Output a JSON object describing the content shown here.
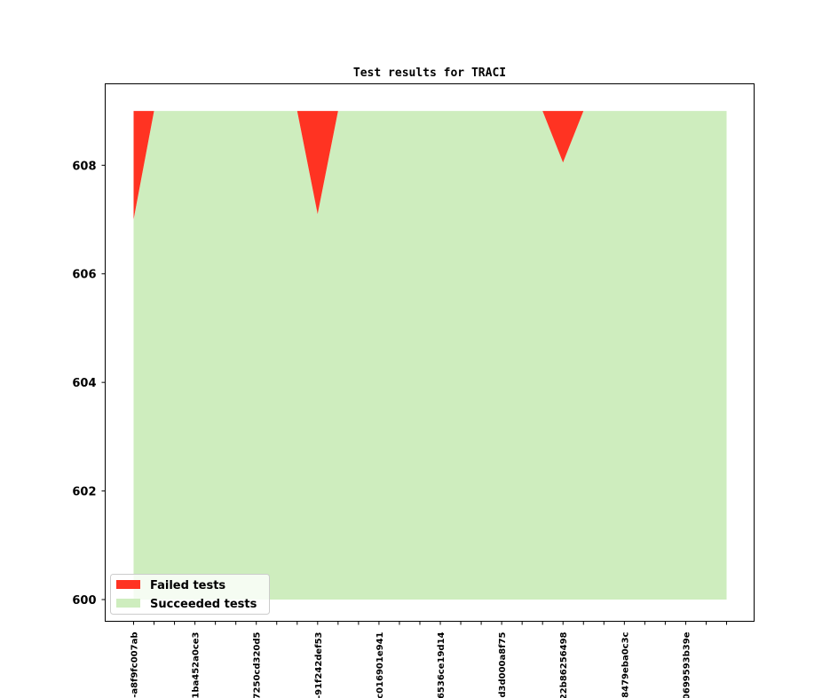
{
  "chart_data": {
    "type": "area",
    "title": "Test results for TRACI",
    "xlabel": "",
    "ylabel": "",
    "ylim": [
      599.6,
      609.5
    ],
    "yticks": [
      600,
      602,
      604,
      606,
      608
    ],
    "x_index_range": [
      0,
      29
    ],
    "xtick_labels": [
      {
        "index": 0,
        "label": "-a8f9fc007ab"
      },
      {
        "index": 3,
        "label": "-1ba452a0ce3"
      },
      {
        "index": 6,
        "label": "7250cd320d5"
      },
      {
        "index": 9,
        "label": "-91f242def53"
      },
      {
        "index": 12,
        "label": "c016901e941"
      },
      {
        "index": 15,
        "label": "6536ce19d14"
      },
      {
        "index": 18,
        "label": "d3d000a8f75"
      },
      {
        "index": 21,
        "label": "22b86256498"
      },
      {
        "index": 24,
        "label": "-8479eba0c3c"
      },
      {
        "index": 27,
        "label": "0699593b39e"
      }
    ],
    "series": [
      {
        "name": "Failed tests",
        "color": "#ff3322",
        "upper": [
          609,
          609,
          609,
          609,
          609,
          609,
          609,
          609,
          609,
          609,
          609,
          609,
          609,
          609,
          609,
          609,
          609,
          609,
          609,
          609,
          609,
          609,
          609,
          609,
          609,
          609,
          609,
          609,
          609,
          609
        ],
        "lower": [
          607,
          609,
          609,
          609,
          609,
          609,
          609,
          609,
          609,
          607.1,
          609,
          609,
          609,
          609,
          609,
          609,
          609,
          609,
          609,
          609,
          609,
          608.05,
          609,
          609,
          609,
          609,
          609,
          609,
          609,
          609
        ]
      },
      {
        "name": "Succeeded tests",
        "color": "#ceedbe",
        "upper": [
          607,
          609,
          609,
          609,
          609,
          609,
          609,
          609,
          609,
          607.1,
          609,
          609,
          609,
          609,
          609,
          609,
          609,
          609,
          609,
          609,
          609,
          608.05,
          609,
          609,
          609,
          609,
          609,
          609,
          609,
          609
        ],
        "lower": [
          600,
          600,
          600,
          600,
          600,
          600,
          600,
          600,
          600,
          600,
          600,
          600,
          600,
          600,
          600,
          600,
          600,
          600,
          600,
          600,
          600,
          600,
          600,
          600,
          600,
          600,
          600,
          600,
          600,
          600
        ]
      }
    ],
    "legend_position": "lower-left",
    "grid": false
  }
}
